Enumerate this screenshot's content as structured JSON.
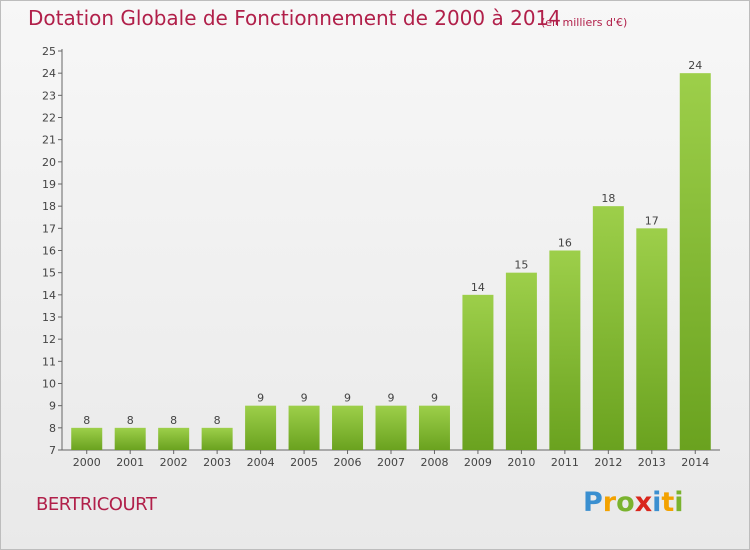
{
  "title": "Dotation Globale de Fonctionnement de 2000 à 2014",
  "subtitle": "(en milliers d'€)",
  "commune": "BERTRICOURT",
  "logo": {
    "text": "Proxiti",
    "letters": [
      "P",
      "r",
      "o",
      "x",
      "i",
      "t",
      "i"
    ]
  },
  "colors": {
    "title": "#b1204a",
    "bar_light": "#9dcf4a",
    "bar_dark": "#6aa21f",
    "axis": "#555555"
  },
  "chart_data": {
    "type": "bar",
    "categories": [
      "2000",
      "2001",
      "2002",
      "2003",
      "2004",
      "2005",
      "2006",
      "2007",
      "2008",
      "2009",
      "2010",
      "2011",
      "2012",
      "2013",
      "2014"
    ],
    "values": [
      8,
      8,
      8,
      8,
      9,
      9,
      9,
      9,
      9,
      14,
      15,
      16,
      18,
      17,
      24
    ],
    "data_labels": [
      "8",
      "8",
      "8",
      "8",
      "9",
      "9",
      "9",
      "9",
      "9",
      "14",
      "15",
      "16",
      "18",
      "17",
      "24"
    ],
    "ylim": [
      7,
      25
    ],
    "yticks": [
      7,
      8,
      9,
      10,
      11,
      12,
      13,
      14,
      15,
      16,
      17,
      18,
      19,
      20,
      21,
      22,
      23,
      24,
      25
    ],
    "xlabel": "",
    "ylabel": "",
    "grid": false,
    "legend": "none"
  }
}
